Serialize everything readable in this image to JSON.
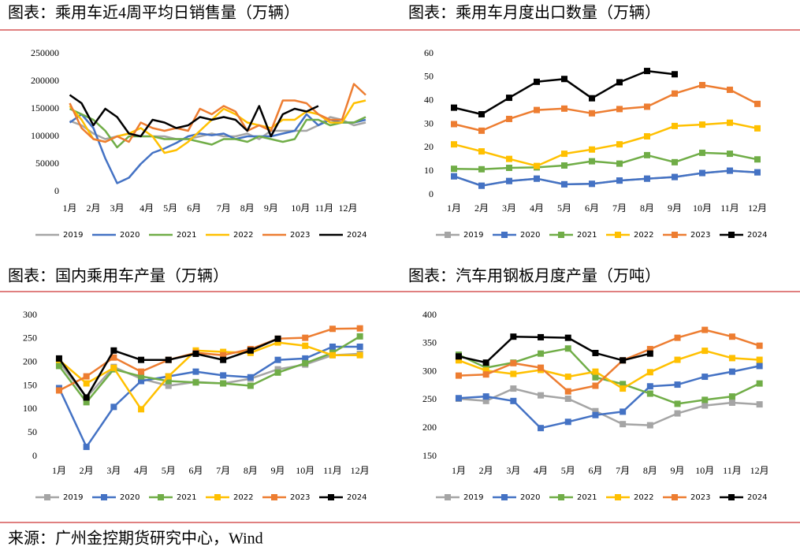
{
  "chart_data": [
    {
      "type": "line",
      "title": "图表：乘用车近4周平均日销售量（万辆）",
      "x": [
        1,
        3,
        5,
        7,
        9,
        11,
        13,
        15,
        17,
        19,
        21,
        23,
        25,
        27,
        29,
        31,
        33,
        35,
        37,
        39,
        41,
        43,
        45,
        47,
        49,
        51
      ],
      "xlim": [
        0,
        53
      ],
      "xticks": [
        {
          "value": 1,
          "label": "1月"
        },
        {
          "value": 5,
          "label": "2月"
        },
        {
          "value": 9,
          "label": "3月"
        },
        {
          "value": 14,
          "label": "4月"
        },
        {
          "value": 18,
          "label": "5月"
        },
        {
          "value": 22,
          "label": "6月"
        },
        {
          "value": 27,
          "label": "7月"
        },
        {
          "value": 31,
          "label": "8月"
        },
        {
          "value": 35,
          "label": "9月"
        },
        {
          "value": 40,
          "label": "10月"
        },
        {
          "value": 44,
          "label": "11月"
        },
        {
          "value": 48,
          "label": "12月"
        }
      ],
      "ylim": [
        0,
        250000
      ],
      "yticks": [
        0,
        50000,
        100000,
        150000,
        200000,
        250000
      ],
      "markers": false,
      "grid": false,
      "series": [
        {
          "name": "2019",
          "color": "#a5a5a5",
          "values": [
            128000,
            120000,
            105000,
            95000,
            100000,
            105000,
            100000,
            100000,
            100000,
            95000,
            95000,
            100000,
            105000,
            100000,
            100000,
            105000,
            95000,
            110000,
            110000,
            110000,
            110000,
            120000,
            135000,
            130000,
            120000,
            125000
          ]
        },
        {
          "name": "2020",
          "color": "#4472c4",
          "values": [
            125000,
            140000,
            115000,
            60000,
            15000,
            25000,
            50000,
            70000,
            78000,
            88000,
            100000,
            105000,
            102000,
            105000,
            95000,
            100000,
            100000,
            100000,
            105000,
            110000,
            140000,
            120000,
            130000,
            125000,
            125000,
            130000
          ]
        },
        {
          "name": "2021",
          "color": "#70ad47",
          "values": [
            150000,
            140000,
            130000,
            110000,
            80000,
            100000,
            100000,
            100000,
            95000,
            95000,
            95000,
            90000,
            85000,
            95000,
            95000,
            90000,
            100000,
            95000,
            90000,
            95000,
            130000,
            130000,
            120000,
            125000,
            125000,
            135000
          ]
        },
        {
          "name": "2022",
          "color": "#ffc000",
          "values": [
            155000,
            130000,
            95000,
            90000,
            100000,
            105000,
            115000,
            100000,
            70000,
            75000,
            90000,
            110000,
            130000,
            150000,
            140000,
            125000,
            120000,
            115000,
            130000,
            130000,
            145000,
            140000,
            125000,
            125000,
            160000,
            165000
          ]
        },
        {
          "name": "2023",
          "color": "#ed7d31",
          "values": [
            160000,
            115000,
            95000,
            90000,
            100000,
            90000,
            125000,
            115000,
            110000,
            115000,
            110000,
            150000,
            140000,
            155000,
            145000,
            110000,
            120000,
            110000,
            165000,
            165000,
            160000,
            140000,
            130000,
            130000,
            195000,
            175000
          ]
        },
        {
          "name": "2024",
          "color": "#000000",
          "values": [
            175000,
            160000,
            120000,
            150000,
            135000,
            105000,
            100000,
            130000,
            125000,
            115000,
            120000,
            135000,
            130000,
            135000,
            130000,
            110000,
            155000,
            100000,
            140000,
            150000,
            145000,
            155000,
            null,
            null,
            null,
            null
          ]
        }
      ]
    },
    {
      "type": "line",
      "title": "图表：乘用车月度出口数量（万辆）",
      "categories": [
        "1月",
        "2月",
        "3月",
        "4月",
        "5月",
        "6月",
        "7月",
        "8月",
        "9月",
        "10月",
        "11月",
        "12月"
      ],
      "ylim": [
        0,
        60
      ],
      "yticks": [
        0,
        10,
        20,
        30,
        40,
        50,
        60
      ],
      "markers": true,
      "grid": false,
      "series": [
        {
          "name": "2019",
          "color": "#a5a5a5",
          "values": [
            7.8,
            3.8,
            5.8,
            6.8,
            4.4,
            4.6,
            6,
            6.8,
            7.5,
            9.2,
            10.2,
            9.5
          ]
        },
        {
          "name": "2020",
          "color": "#4472c4",
          "values": [
            7.8,
            3.8,
            5.8,
            6.8,
            4.4,
            4.6,
            6,
            6.8,
            7.5,
            9.2,
            10.2,
            9.5
          ]
        },
        {
          "name": "2021",
          "color": "#70ad47",
          "values": [
            11,
            10.8,
            11.4,
            11.6,
            12.4,
            14.2,
            13.2,
            16.8,
            13.8,
            17.8,
            17.4,
            15
          ]
        },
        {
          "name": "2022",
          "color": "#ffc000",
          "values": [
            21.4,
            18.4,
            15.2,
            12.2,
            17.4,
            19.2,
            21.4,
            24.8,
            29.2,
            29.8,
            30.6,
            28.2
          ]
        },
        {
          "name": "2023",
          "color": "#ed7d31",
          "values": [
            30,
            27.2,
            32.2,
            36,
            36.6,
            34.6,
            36.4,
            37.4,
            43,
            46.6,
            44.6,
            38.6
          ]
        },
        {
          "name": "2024",
          "color": "#000000",
          "values": [
            37,
            34.2,
            41.2,
            48,
            49.2,
            41,
            47.8,
            52.6,
            51.2,
            null,
            null,
            null
          ]
        }
      ]
    },
    {
      "type": "line",
      "title": "图表：国内乘用车产量（万辆）",
      "categories": [
        "1月",
        "2月",
        "3月",
        "4月",
        "5月",
        "6月",
        "7月",
        "8月",
        "9月",
        "10月",
        "11月",
        "12月"
      ],
      "ylim": [
        0,
        300
      ],
      "yticks": [
        0,
        50,
        100,
        150,
        200,
        250,
        300
      ],
      "markers": true,
      "grid": false,
      "series": [
        {
          "name": "2019",
          "color": "#a5a5a5",
          "values": [
            200,
            125,
            190,
            165,
            150,
            158,
            155,
            165,
            185,
            195,
            215,
            218
          ]
        },
        {
          "name": "2020",
          "color": "#4472c4",
          "values": [
            145,
            20,
            105,
            160,
            170,
            180,
            172,
            168,
            205,
            208,
            233,
            233
          ]
        },
        {
          "name": "2021",
          "color": "#70ad47",
          "values": [
            192,
            115,
            185,
            170,
            160,
            157,
            155,
            150,
            178,
            198,
            220,
            255
          ]
        },
        {
          "name": "2022",
          "color": "#ffc000",
          "values": [
            205,
            155,
            188,
            100,
            170,
            225,
            222,
            220,
            242,
            235,
            215,
            215
          ]
        },
        {
          "name": "2023",
          "color": "#ed7d31",
          "values": [
            140,
            170,
            210,
            180,
            205,
            220,
            215,
            228,
            250,
            252,
            271,
            272
          ]
        },
        {
          "name": "2024",
          "color": "#000000",
          "values": [
            208,
            125,
            225,
            205,
            205,
            218,
            205,
            225,
            250,
            null,
            null,
            null
          ]
        }
      ]
    },
    {
      "type": "line",
      "title": "图表：汽车用钢板月度产量（万吨）",
      "categories": [
        "1月",
        "2月",
        "3月",
        "4月",
        "5月",
        "6月",
        "7月",
        "8月",
        "9月",
        "10月",
        "11月",
        "12月"
      ],
      "ylim": [
        150,
        400
      ],
      "yticks": [
        150,
        200,
        250,
        300,
        350,
        400
      ],
      "markers": true,
      "grid": false,
      "series": [
        {
          "name": "2019",
          "color": "#a5a5a5",
          "values": [
            252,
            248,
            270,
            258,
            252,
            230,
            207,
            205,
            226,
            240,
            245,
            242
          ]
        },
        {
          "name": "2020",
          "color": "#4472c4",
          "values": [
            253,
            256,
            248,
            200,
            211,
            223,
            229,
            274,
            277,
            291,
            300,
            310
          ]
        },
        {
          "name": "2021",
          "color": "#70ad47",
          "values": [
            330,
            307,
            316,
            332,
            341,
            290,
            278,
            261,
            243,
            250,
            256,
            279
          ]
        },
        {
          "name": "2022",
          "color": "#ffc000",
          "values": [
            320,
            302,
            296,
            303,
            291,
            300,
            270,
            299,
            321,
            337,
            324,
            321
          ]
        },
        {
          "name": "2023",
          "color": "#ed7d31",
          "values": [
            293,
            295,
            315,
            307,
            265,
            275,
            320,
            340,
            360,
            374,
            362,
            346
          ]
        },
        {
          "name": "2024",
          "color": "#000000",
          "values": [
            327,
            316,
            362,
            361,
            360,
            333,
            320,
            332,
            null,
            null,
            null,
            null
          ]
        }
      ]
    }
  ],
  "source": "来源：广州金控期货研究中心，Wind"
}
